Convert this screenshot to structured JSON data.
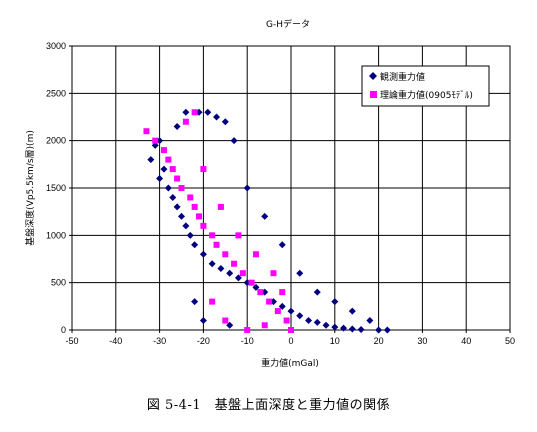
{
  "chart_data": {
    "type": "scatter",
    "title": "G-Hデータ",
    "xlabel": "重力値(mGal)",
    "ylabel": "基盤深度(Vp5.5km/s層)(m)",
    "xlim": [
      -50,
      50
    ],
    "ylim": [
      0,
      3000
    ],
    "x_ticks": [
      -50,
      -40,
      -30,
      -20,
      -10,
      0,
      10,
      20,
      30,
      40,
      50
    ],
    "y_ticks": [
      0,
      500,
      1000,
      1500,
      2000,
      2500,
      3000
    ],
    "grid": true,
    "legend_position": "top-right",
    "series": [
      {
        "name": "観測重力値",
        "color": "#000080",
        "marker": "diamond",
        "points": [
          [
            -32,
            1800
          ],
          [
            -31,
            1950
          ],
          [
            -30,
            2000
          ],
          [
            -30,
            1600
          ],
          [
            -29,
            1700
          ],
          [
            -28,
            1500
          ],
          [
            -27,
            1400
          ],
          [
            -26,
            1300
          ],
          [
            -25,
            1200
          ],
          [
            -24,
            1100
          ],
          [
            -23,
            1000
          ],
          [
            -22,
            900
          ],
          [
            -20,
            800
          ],
          [
            -18,
            700
          ],
          [
            -16,
            650
          ],
          [
            -14,
            600
          ],
          [
            -12,
            550
          ],
          [
            -10,
            500
          ],
          [
            -8,
            450
          ],
          [
            -6,
            400
          ],
          [
            -4,
            300
          ],
          [
            -2,
            250
          ],
          [
            0,
            200
          ],
          [
            2,
            150
          ],
          [
            4,
            100
          ],
          [
            6,
            80
          ],
          [
            8,
            50
          ],
          [
            10,
            30
          ],
          [
            12,
            20
          ],
          [
            14,
            10
          ],
          [
            16,
            5
          ],
          [
            20,
            0
          ],
          [
            -21,
            2300
          ],
          [
            -19,
            2300
          ],
          [
            -17,
            2250
          ],
          [
            -15,
            2200
          ],
          [
            -13,
            2000
          ],
          [
            -10,
            1500
          ],
          [
            -6,
            1200
          ],
          [
            -2,
            900
          ],
          [
            2,
            600
          ],
          [
            6,
            400
          ],
          [
            10,
            300
          ],
          [
            14,
            200
          ],
          [
            18,
            100
          ],
          [
            22,
            0
          ],
          [
            -22,
            300
          ],
          [
            -20,
            100
          ],
          [
            -14,
            50
          ],
          [
            -26,
            2150
          ],
          [
            -24,
            2300
          ]
        ]
      },
      {
        "name": "理論重力値(0905ﾓﾃﾞﾙ)",
        "color": "#ff00ff",
        "marker": "square",
        "points": [
          [
            -33,
            2100
          ],
          [
            -31,
            2000
          ],
          [
            -29,
            1900
          ],
          [
            -28,
            1800
          ],
          [
            -27,
            1700
          ],
          [
            -26,
            1600
          ],
          [
            -25,
            1500
          ],
          [
            -23,
            1400
          ],
          [
            -22,
            1300
          ],
          [
            -21,
            1200
          ],
          [
            -20,
            1100
          ],
          [
            -18,
            1000
          ],
          [
            -17,
            900
          ],
          [
            -15,
            800
          ],
          [
            -13,
            700
          ],
          [
            -11,
            600
          ],
          [
            -9,
            500
          ],
          [
            -7,
            400
          ],
          [
            -5,
            300
          ],
          [
            -3,
            200
          ],
          [
            -1,
            100
          ],
          [
            0,
            0
          ],
          [
            -24,
            2200
          ],
          [
            -22,
            2300
          ],
          [
            -20,
            1700
          ],
          [
            -16,
            1300
          ],
          [
            -12,
            1000
          ],
          [
            -8,
            800
          ],
          [
            -4,
            600
          ],
          [
            -2,
            400
          ],
          [
            -18,
            300
          ],
          [
            -15,
            100
          ],
          [
            -10,
            0
          ],
          [
            -6,
            50
          ]
        ]
      }
    ]
  },
  "figure_caption": "図 5-4-1　基盤上面深度と重力値の関係"
}
